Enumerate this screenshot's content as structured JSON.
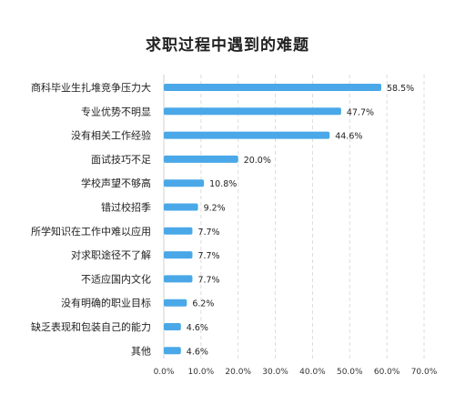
{
  "chart_data": {
    "type": "bar",
    "orientation": "horizontal",
    "title": "求职过程中遇到的难题",
    "categories": [
      "商科毕业生扎堆竞争压力大",
      "专业优势不明显",
      "没有相关工作经验",
      "面试技巧不足",
      "学校声望不够高",
      "错过校招季",
      "所学知识在工作中难以应用",
      "对求职途径不了解",
      "不适应国内文化",
      "没有明确的职业目标",
      "缺乏表现和包装自己的能力",
      "其他"
    ],
    "values": [
      58.5,
      47.7,
      44.6,
      20.0,
      10.8,
      9.2,
      7.7,
      7.7,
      7.7,
      6.2,
      4.6,
      4.6
    ],
    "value_labels": [
      "58.5%",
      "47.7%",
      "44.6%",
      "20.0%",
      "10.8%",
      "9.2%",
      "7.7%",
      "7.7%",
      "7.7%",
      "6.2%",
      "4.6%",
      "4.6%"
    ],
    "xlim": [
      0,
      70
    ],
    "xticks": [
      "0.0%",
      "10.0%",
      "20.0%",
      "30.0%",
      "40.0%",
      "50.0%",
      "60.0%",
      "70.0%"
    ],
    "grid": "vertical dashed",
    "bar_color": "#4aa8e8"
  }
}
